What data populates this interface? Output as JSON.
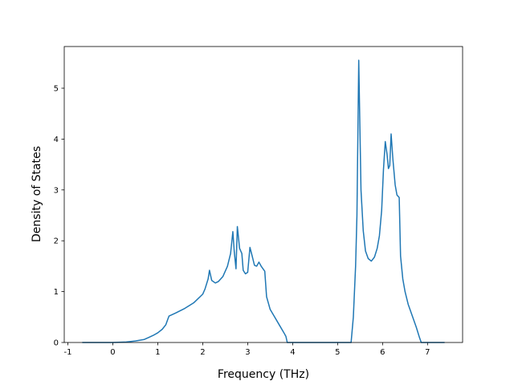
{
  "chart_data": {
    "type": "line",
    "xlabel": "Frequency (THz)",
    "ylabel": "Density of States",
    "x": [
      -0.68,
      0,
      0.3,
      0.5,
      0.7,
      0.8,
      0.9,
      1.0,
      1.1,
      1.18,
      1.22,
      1.25,
      1.4,
      1.6,
      1.8,
      2.0,
      2.05,
      2.12,
      2.15,
      2.2,
      2.28,
      2.35,
      2.45,
      2.55,
      2.62,
      2.67,
      2.7,
      2.74,
      2.77,
      2.82,
      2.87,
      2.9,
      2.95,
      3.0,
      3.05,
      3.1,
      3.15,
      3.2,
      3.25,
      3.3,
      3.38,
      3.42,
      3.5,
      3.6,
      3.7,
      3.8,
      3.85,
      3.88,
      5.3,
      5.35,
      5.4,
      5.43,
      5.47,
      5.52,
      5.57,
      5.62,
      5.68,
      5.75,
      5.82,
      5.88,
      5.93,
      5.98,
      6.02,
      6.06,
      6.1,
      6.13,
      6.16,
      6.19,
      6.23,
      6.28,
      6.32,
      6.37,
      6.4,
      6.45,
      6.5,
      6.57,
      6.65,
      6.75,
      6.82,
      6.86,
      7.38
    ],
    "series": [
      {
        "color": "#1f77b4",
        "values": [
          0,
          0,
          0.01,
          0.03,
          0.06,
          0.1,
          0.14,
          0.19,
          0.26,
          0.35,
          0.45,
          0.52,
          0.58,
          0.67,
          0.78,
          0.95,
          1.05,
          1.25,
          1.42,
          1.22,
          1.17,
          1.2,
          1.3,
          1.5,
          1.75,
          2.18,
          1.8,
          1.45,
          2.28,
          1.85,
          1.75,
          1.42,
          1.35,
          1.38,
          1.87,
          1.7,
          1.52,
          1.5,
          1.58,
          1.5,
          1.4,
          0.9,
          0.65,
          0.5,
          0.35,
          0.2,
          0.12,
          0,
          0,
          0.5,
          1.5,
          2.5,
          5.55,
          3.0,
          2.2,
          1.8,
          1.65,
          1.6,
          1.68,
          1.85,
          2.1,
          2.6,
          3.4,
          3.95,
          3.7,
          3.42,
          3.48,
          4.1,
          3.6,
          3.1,
          2.9,
          2.85,
          1.7,
          1.25,
          1.0,
          0.75,
          0.55,
          0.3,
          0.1,
          0,
          0
        ]
      }
    ],
    "xlim": [
      -1.08,
      7.78
    ],
    "ylim": [
      0,
      5.82
    ],
    "xticks": [
      -1,
      0,
      1,
      2,
      3,
      4,
      5,
      6,
      7
    ],
    "yticks": [
      0,
      1,
      2,
      3,
      4,
      5
    ]
  }
}
